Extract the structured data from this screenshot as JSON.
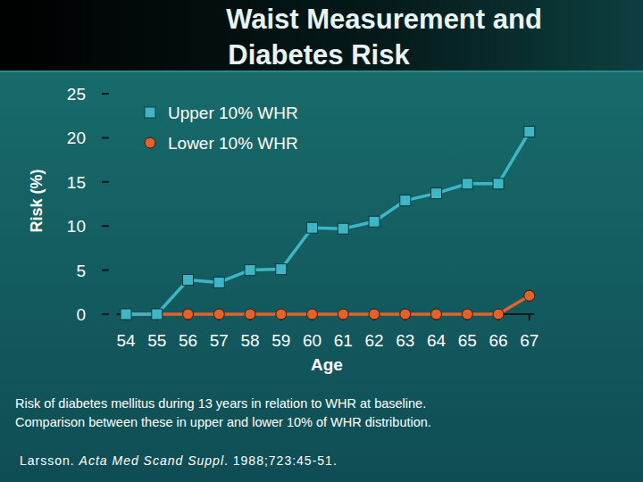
{
  "chart_data": {
    "type": "line",
    "title": [
      "Waist Measurement and",
      "Diabetes Risk"
    ],
    "x_label": "Age",
    "y_label": "Risk (%)",
    "x": [
      54,
      55,
      56,
      57,
      58,
      59,
      60,
      61,
      62,
      63,
      64,
      65,
      66,
      67
    ],
    "xlim": [
      53.7,
      67.15
    ],
    "xticks": [
      54,
      55,
      56,
      57,
      58,
      59,
      60,
      61,
      62,
      63,
      64,
      65,
      66,
      67
    ],
    "ylim": [
      0,
      25
    ],
    "yticks": [
      0,
      5,
      10,
      15,
      20,
      25
    ],
    "grid": false,
    "legend": "upper left",
    "series": [
      {
        "name": "Upper 10% WHR",
        "color": "#3fb6c6",
        "marker": "square",
        "line_style": "solid",
        "values": [
          0,
          0,
          3.9,
          3.6,
          5.0,
          5.1,
          9.8,
          9.7,
          10.5,
          12.9,
          13.7,
          14.8,
          14.8,
          20.7
        ]
      },
      {
        "name": "Lower 10% WHR",
        "color": "#e2622b",
        "marker": "circle",
        "line_style": "solid",
        "values": [
          0,
          0,
          0,
          0,
          0,
          0,
          0,
          0,
          0,
          0,
          0,
          0,
          0,
          2.1
        ]
      }
    ],
    "caption": [
      "Risk of diabetes mellitus during 13 years in relation to WHR at baseline.",
      "Comparison between these in upper and lower 10% of WHR distribution."
    ],
    "citation": {
      "author": "Larsson. ",
      "journal": "Acta Med Scand Suppl",
      "rest": ". 1988;723:45-51."
    }
  }
}
